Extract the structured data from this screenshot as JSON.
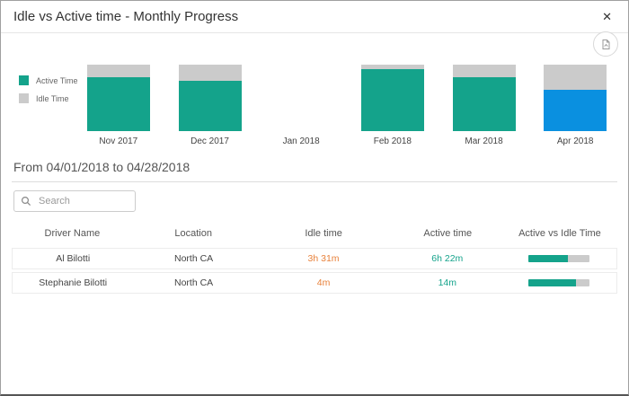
{
  "dialog": {
    "title": "Idle vs Active time - Monthly Progress",
    "close_glyph": "✕"
  },
  "toolbar": {
    "export_icon": "export-image-icon"
  },
  "colors": {
    "active": "#14a38b",
    "idle": "#cbcbcb",
    "selected": "#0a90e0",
    "idle_text": "#e8823c",
    "active_text": "#14a38b"
  },
  "chart_data": {
    "type": "bar",
    "stacked": true,
    "percent": true,
    "categories": [
      "Nov 2017",
      "Dec 2017",
      "Jan 2018",
      "Feb 2018",
      "Mar 2018",
      "Apr 2018"
    ],
    "series": [
      {
        "name": "Active Time",
        "color": "#14a38b",
        "values": [
          81,
          76,
          null,
          93,
          81,
          62
        ]
      },
      {
        "name": "Idle Time",
        "color": "#cbcbcb",
        "values": [
          19,
          24,
          null,
          7,
          19,
          38
        ]
      }
    ],
    "selected_category": "Apr 2018",
    "selected_color": "#0a90e0",
    "legend_position": "left",
    "title": "Idle vs Active time - Monthly Progress"
  },
  "filter": {
    "range_label": "From 04/01/2018 to 04/28/2018"
  },
  "search": {
    "placeholder": "Search"
  },
  "table": {
    "columns": [
      "Driver Name",
      "Location",
      "Idle time",
      "Active time",
      "Active vs Idle Time"
    ],
    "rows": [
      {
        "driver": "Al Bilotti",
        "location": "North CA",
        "idle": "3h 31m",
        "active": "6h 22m",
        "active_pct": 65
      },
      {
        "driver": "Stephanie Bilotti",
        "location": "North CA",
        "idle": "4m",
        "active": "14m",
        "active_pct": 78
      }
    ]
  }
}
